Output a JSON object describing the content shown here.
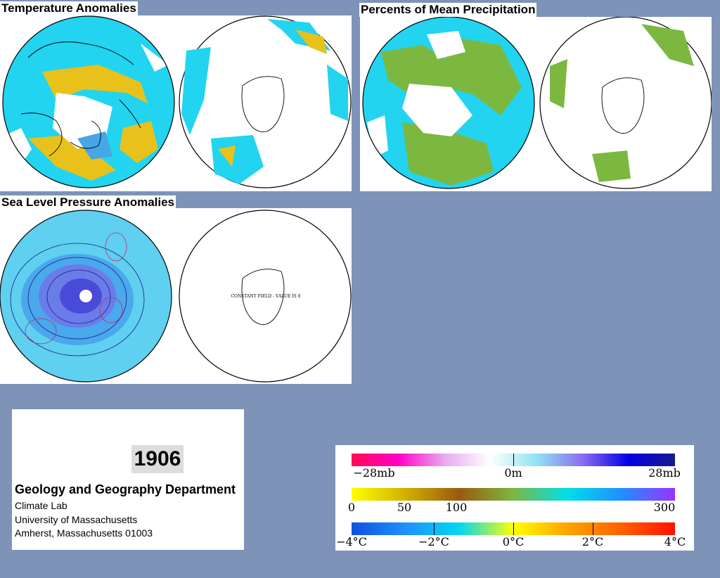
{
  "panels": {
    "temperature": {
      "title": "Temperature Anomalies"
    },
    "precipitation": {
      "title": "Percents of Mean Precipitation"
    },
    "pressure": {
      "title": "Sea Level Pressure Anomalies",
      "south_label": "CONSTANT FIELD - VALUE IS 0"
    }
  },
  "info": {
    "year": "1906",
    "department": "Geology and Geography Department",
    "lines": [
      "Climate Lab",
      "University of Massachusetts",
      "Amherst, Massachusetts 01003"
    ]
  },
  "legend": {
    "pressure": {
      "min": "−28mb",
      "mid": "0m",
      "max": "28mb",
      "colors": [
        "#ff0a55",
        "#ff00c8",
        "#e9a8f0",
        "#ffffff",
        "#8fe4f5",
        "#8a6cf0",
        "#0000e6",
        "#1a1a8c"
      ]
    },
    "precip": {
      "labels": [
        "0",
        "50",
        "100",
        "300"
      ],
      "colors": [
        "#ffff00",
        "#d1b000",
        "#9a5a10",
        "#7cb840",
        "#00e0e8",
        "#1e90ff",
        "#9933ff"
      ]
    },
    "temperature": {
      "labels": [
        "−4°C",
        "−2°C",
        "0°C",
        "2°C",
        "4°C"
      ],
      "colors": [
        "#1050e0",
        "#1e90ff",
        "#00d8f0",
        "#ffff00",
        "#ffa500",
        "#ff6000",
        "#ff1000"
      ]
    }
  }
}
